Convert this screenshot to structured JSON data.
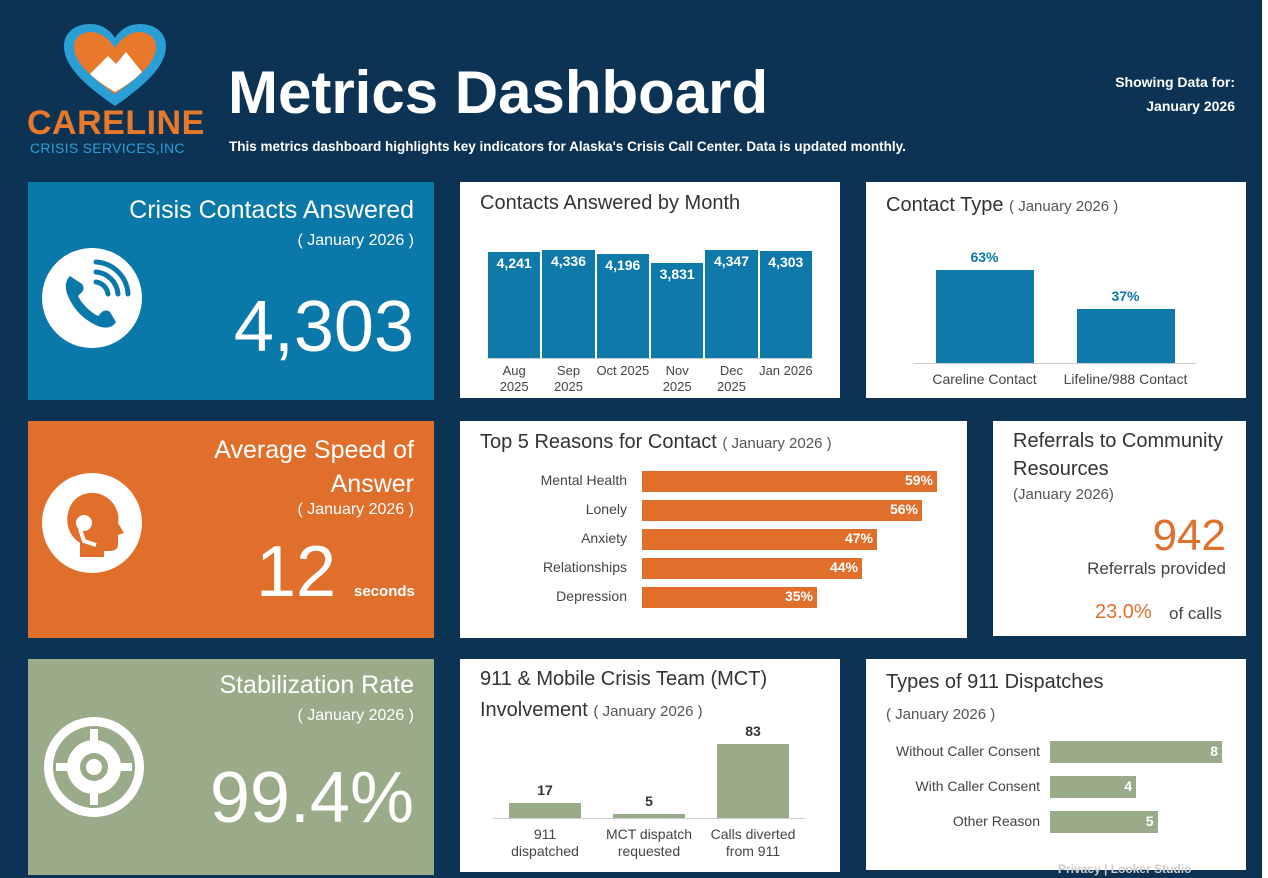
{
  "header": {
    "logo_name": "CARELINE",
    "logo_sub": "CRISIS SERVICES,INC",
    "title": "Metrics Dashboard",
    "subtitle": "This metrics dashboard highlights key indicators for Alaska's Crisis Call Center. Data is updated monthly.",
    "showing_label": "Showing Data for:",
    "showing_period": "January 2026"
  },
  "cards": [
    {
      "title": "Crisis Contacts Answered",
      "period": "( January 2026 )",
      "value": "4,303"
    },
    {
      "title": "Average Speed of Answer",
      "period": "( January 2026 )",
      "value": "12",
      "unit": "seconds"
    },
    {
      "title": "Stabilization Rate",
      "period": "( January 2026 )",
      "value": "99.4%"
    }
  ],
  "referrals": {
    "title": "Referrals to Community Resources",
    "period": "(January 2026)",
    "value": "942",
    "value_caption": "Referrals provided",
    "share": "23.0%",
    "share_caption": "of calls"
  },
  "chart_data": [
    {
      "type": "bar",
      "title": "Contacts Answered by Month",
      "categories": [
        "Aug 2025",
        "Sep 2025",
        "Oct 2025",
        "Nov 2025",
        "Dec 2025",
        "Jan 2026"
      ],
      "values": [
        4241,
        4336,
        4196,
        3831,
        4347,
        4303
      ],
      "value_labels": [
        "4,241",
        "4,336",
        "4,196",
        "3,831",
        "4,347",
        "4,303"
      ],
      "color": "#0f79aa",
      "ylim": [
        0,
        4500
      ]
    },
    {
      "type": "bar",
      "title": "Contact Type",
      "period": "( January 2026 )",
      "categories": [
        "Careline Contact",
        "Lifeline/988 Contact"
      ],
      "values": [
        63,
        37
      ],
      "value_labels": [
        "63%",
        "37%"
      ],
      "color": "#0f79aa",
      "ylim": [
        0,
        70
      ]
    },
    {
      "type": "hbar",
      "title": "Top 5 Reasons for Contact",
      "period": "( January 2026 )",
      "categories": [
        "Mental Health",
        "Lonely",
        "Anxiety",
        "Relationships",
        "Depression"
      ],
      "values": [
        59,
        56,
        47,
        44,
        35
      ],
      "value_labels": [
        "59%",
        "56%",
        "47%",
        "44%",
        "35%"
      ],
      "color": "#e06f2c",
      "xlim": [
        0,
        62
      ]
    },
    {
      "type": "bar",
      "title": "911 & Mobile Crisis Team (MCT) Involvement",
      "period": "( January 2026 )",
      "categories": [
        "911 dispatched",
        "MCT dispatch requested",
        "Calls diverted from 911"
      ],
      "values": [
        17,
        5,
        83
      ],
      "color": "#9aab8a",
      "ylim": [
        0,
        85
      ]
    },
    {
      "type": "hbar",
      "title": "Types of 911 Dispatches",
      "period": "( January 2026 )",
      "categories": [
        "Without Caller Consent",
        "With Caller Consent",
        "Other Reason"
      ],
      "values": [
        8,
        4,
        5
      ],
      "color": "#9aab8a",
      "xlim": [
        0,
        8
      ]
    }
  ],
  "footer": {
    "privacy": "Privacy",
    "separator": "|",
    "tool": "Looker Studio"
  }
}
